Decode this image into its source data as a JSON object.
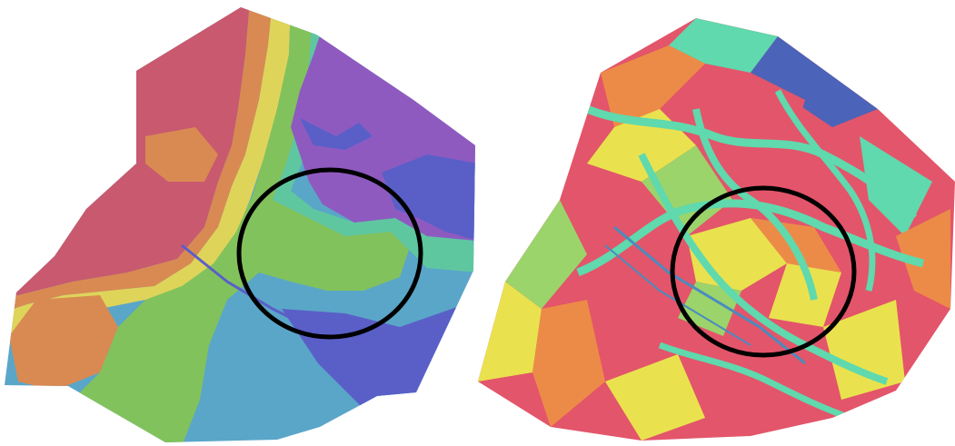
{
  "figure": {
    "panels": [
      {
        "id": "left",
        "description_key": "smooth-field-map",
        "palette": [
          "#c9596f",
          "#d98a52",
          "#dfd45a",
          "#82c25c",
          "#5fc7a0",
          "#5aa6c8",
          "#5a5fc8",
          "#8f5ac0"
        ]
      },
      {
        "id": "right",
        "description_key": "triangulated-mesh-map",
        "palette": [
          "#e3556a",
          "#ec8b48",
          "#e9e24e",
          "#9bd46a",
          "#5fd9ad",
          "#4a8bc0",
          "#4b63b8"
        ]
      }
    ],
    "highlight": {
      "shape": "ellipse",
      "stroke": "#000000"
    }
  }
}
